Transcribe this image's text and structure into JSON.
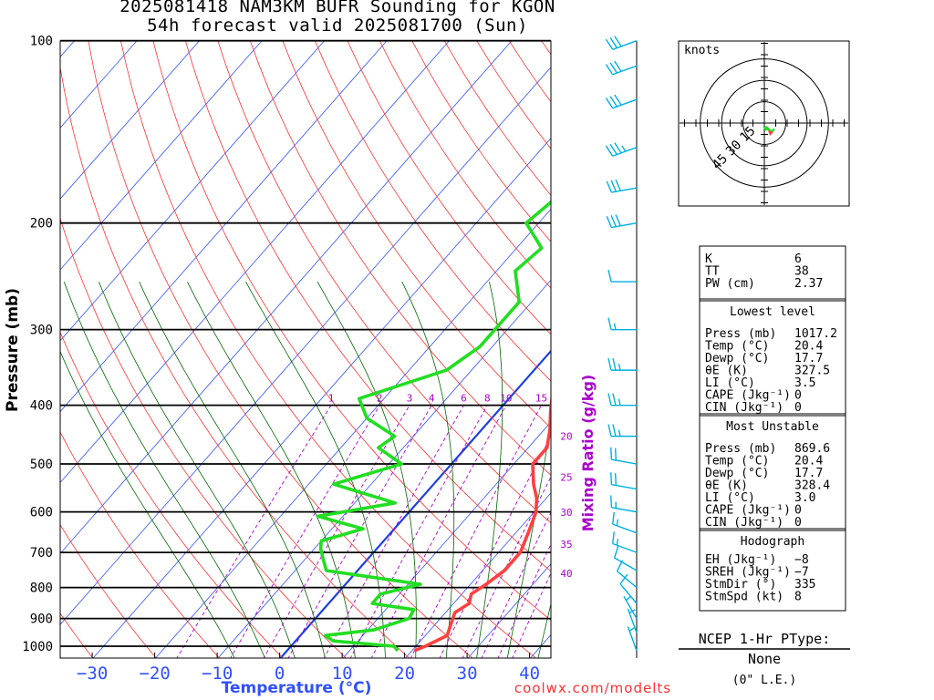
{
  "header": {
    "title_line1": "2025081418 NAM3KM BUFR Sounding for KGON",
    "title_line2": "54h forecast valid 2025081700 (Sun)"
  },
  "chart_data": {
    "type": "line",
    "subtype": "skew-T log-P sounding",
    "xlabel": "Temperature (°C)",
    "ylabel": "Pressure (mb)",
    "mixing_ratio_label": "Mixing Ratio (g/kg)",
    "x_ticks": [
      -30,
      -20,
      -10,
      0,
      10,
      20,
      30,
      40
    ],
    "y_ticks": [
      100,
      200,
      300,
      400,
      500,
      600,
      700,
      800,
      900,
      1000
    ],
    "xlim": [
      -38,
      41
    ],
    "ylim": [
      1050,
      100
    ],
    "mixing_ratio_values": [
      1,
      2,
      3,
      4,
      6,
      8,
      10,
      15,
      20,
      25,
      30,
      35,
      40
    ],
    "series": [
      {
        "name": "temperature",
        "color": "#ff4040",
        "points": [
          [
            1017,
            20.4
          ],
          [
            1000,
            21.5
          ],
          [
            960,
            23.5
          ],
          [
            920,
            22.5
          ],
          [
            880,
            21.5
          ],
          [
            850,
            22.5
          ],
          [
            820,
            21.5
          ],
          [
            790,
            22.5
          ],
          [
            750,
            23.5
          ],
          [
            700,
            23.5
          ],
          [
            650,
            22
          ],
          [
            600,
            20.3
          ],
          [
            570,
            18.5
          ],
          [
            540,
            16
          ],
          [
            500,
            13
          ],
          [
            470,
            13
          ],
          [
            440,
            11
          ],
          [
            410,
            8.5
          ],
          [
            380,
            6
          ],
          [
            350,
            3.5
          ],
          [
            320,
            0.5
          ],
          [
            300,
            -1
          ],
          [
            270,
            -3.5
          ],
          [
            250,
            -5.5
          ],
          [
            230,
            -6.5
          ],
          [
            200,
            -11
          ],
          [
            175,
            -15
          ],
          [
            155,
            -18
          ],
          [
            140,
            -20
          ],
          [
            125,
            -22
          ],
          [
            110,
            -23.5
          ],
          [
            100,
            -24
          ]
        ]
      },
      {
        "name": "dewpoint",
        "color": "#22dd22",
        "points": [
          [
            1017,
            17.7
          ],
          [
            1000,
            16.5
          ],
          [
            980,
            6
          ],
          [
            960,
            4
          ],
          [
            940,
            11
          ],
          [
            900,
            15
          ],
          [
            870,
            14.5
          ],
          [
            850,
            7
          ],
          [
            820,
            7
          ],
          [
            790,
            12
          ],
          [
            750,
            -5
          ],
          [
            720,
            -7
          ],
          [
            690,
            -9
          ],
          [
            670,
            -10
          ],
          [
            640,
            -5
          ],
          [
            610,
            -14
          ],
          [
            580,
            -3.5
          ],
          [
            540,
            -16
          ],
          [
            500,
            -8
          ],
          [
            470,
            -14
          ],
          [
            450,
            -13
          ],
          [
            420,
            -20
          ],
          [
            390,
            -24
          ],
          [
            350,
            -14
          ],
          [
            320,
            -12
          ],
          [
            300,
            -12
          ],
          [
            270,
            -12
          ],
          [
            240,
            -17
          ],
          [
            220,
            -16
          ],
          [
            200,
            -22
          ],
          [
            185,
            -21
          ],
          [
            150,
            -21
          ],
          [
            140,
            -21
          ]
        ]
      }
    ],
    "wind_barbs_kt": [
      {
        "p": 1017,
        "dir": 340,
        "spd": 5
      },
      {
        "p": 950,
        "dir": 340,
        "spd": 5
      },
      {
        "p": 900,
        "dir": 330,
        "spd": 5
      },
      {
        "p": 850,
        "dir": 320,
        "spd": 10
      },
      {
        "p": 800,
        "dir": 310,
        "spd": 10
      },
      {
        "p": 750,
        "dir": 300,
        "spd": 10
      },
      {
        "p": 700,
        "dir": 290,
        "spd": 15
      },
      {
        "p": 650,
        "dir": 290,
        "spd": 15
      },
      {
        "p": 600,
        "dir": 280,
        "spd": 15
      },
      {
        "p": 550,
        "dir": 280,
        "spd": 20
      },
      {
        "p": 500,
        "dir": 280,
        "spd": 20
      },
      {
        "p": 450,
        "dir": 270,
        "spd": 25
      },
      {
        "p": 400,
        "dir": 270,
        "spd": 25
      },
      {
        "p": 350,
        "dir": 270,
        "spd": 25
      },
      {
        "p": 300,
        "dir": 270,
        "spd": 15
      },
      {
        "p": 250,
        "dir": 270,
        "spd": 10
      },
      {
        "p": 200,
        "dir": 260,
        "spd": 30
      },
      {
        "p": 175,
        "dir": 260,
        "spd": 30
      },
      {
        "p": 150,
        "dir": 250,
        "spd": 35
      },
      {
        "p": 125,
        "dir": 250,
        "spd": 30
      },
      {
        "p": 110,
        "dir": 250,
        "spd": 30
      },
      {
        "p": 100,
        "dir": 250,
        "spd": 30
      }
    ]
  },
  "hodograph": {
    "units_label": "knots",
    "ring_labels": [
      "15",
      "30",
      "45"
    ]
  },
  "indices": {
    "rows": [
      {
        "label": "K",
        "value": "6"
      },
      {
        "label": "TT",
        "value": "38"
      },
      {
        "label": "PW (cm)",
        "value": "2.37"
      }
    ],
    "lowest_title": "Lowest level",
    "lowest": [
      {
        "label": "Press (mb)",
        "value": "1017.2"
      },
      {
        "label": "Temp (°C)",
        "value": "20.4"
      },
      {
        "label": "Dewp (°C)",
        "value": "17.7"
      },
      {
        "label": "θE (K)",
        "value": "327.5"
      },
      {
        "label": "LI (°C)",
        "value": "3.5"
      },
      {
        "label": "CAPE (Jkg⁻¹)",
        "value": "0"
      },
      {
        "label": "CIN (Jkg⁻¹)",
        "value": "0"
      }
    ],
    "unstable_title": "Most Unstable",
    "unstable": [
      {
        "label": "Press (mb)",
        "value": "869.6"
      },
      {
        "label": "Temp (°C)",
        "value": "20.4"
      },
      {
        "label": "Dewp (°C)",
        "value": "17.7"
      },
      {
        "label": "θE (K)",
        "value": "328.4"
      },
      {
        "label": "LI (°C)",
        "value": "3.0"
      },
      {
        "label": "CAPE (Jkg⁻¹)",
        "value": "0"
      },
      {
        "label": "CIN (Jkg⁻¹)",
        "value": "0"
      }
    ],
    "hodo_title": "Hodograph",
    "hodo": [
      {
        "label": "EH (Jkg⁻¹)",
        "value": "−8"
      },
      {
        "label": "SREH (Jkg⁻¹)",
        "value": "−7"
      },
      {
        "label": "StmDir (°)",
        "value": "335"
      },
      {
        "label": "StmSpd (kt)",
        "value": "8"
      }
    ]
  },
  "ptype": {
    "title": "NCEP 1-Hr PType:",
    "value": "None",
    "note": "(0\" L.E.)"
  },
  "footer": {
    "credit": "coolwx.com/modelts"
  },
  "colors": {
    "temp": "#ff4040",
    "dewp": "#22dd22",
    "isotherm": "#3050ff",
    "dry_adiabat": "#ff3030",
    "moist_adiabat": "#006600",
    "mixing_ratio": "#aa00cc",
    "wind": "#00b0e0",
    "credit": "#ff3030"
  }
}
